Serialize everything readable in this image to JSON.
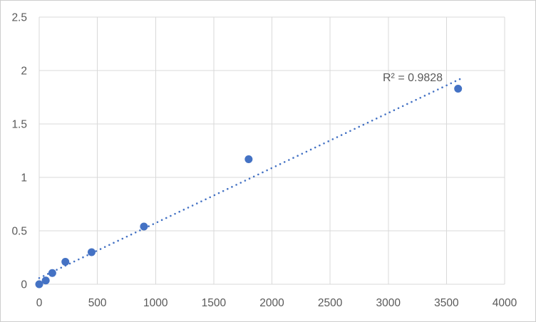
{
  "chart_data": {
    "type": "scatter",
    "title": "",
    "xlabel": "",
    "ylabel": "",
    "xlim": [
      0,
      4000
    ],
    "ylim": [
      0,
      2.5
    ],
    "x_ticks": [
      0,
      500,
      1000,
      1500,
      2000,
      2500,
      3000,
      3500,
      4000
    ],
    "y_ticks": [
      0,
      0.5,
      1,
      1.5,
      2,
      2.5
    ],
    "grid": true,
    "legend": false,
    "series": [
      {
        "name": "standard-curve-points",
        "marker": "circle",
        "marker_color": "#4472c4",
        "points": [
          [
            0,
            0.0
          ],
          [
            56.25,
            0.035
          ],
          [
            112.5,
            0.105
          ],
          [
            225,
            0.21
          ],
          [
            450,
            0.3
          ],
          [
            900,
            0.54
          ],
          [
            1800,
            1.17
          ],
          [
            3600,
            1.83
          ]
        ]
      }
    ],
    "trendline": {
      "style": "dotted",
      "color": "#4472c4",
      "slope": 0.000515,
      "intercept": 0.058,
      "x_start": 0,
      "x_end": 3630,
      "r2_label": "R² = 0.9828",
      "r2_value": 0.9828
    },
    "colors": {
      "marker": "#4472c4",
      "trendline": "#4472c4",
      "gridline": "#d9d9d9",
      "tick_label": "#595959",
      "background": "#ffffff",
      "frame_border": "#cdcdcd"
    }
  }
}
